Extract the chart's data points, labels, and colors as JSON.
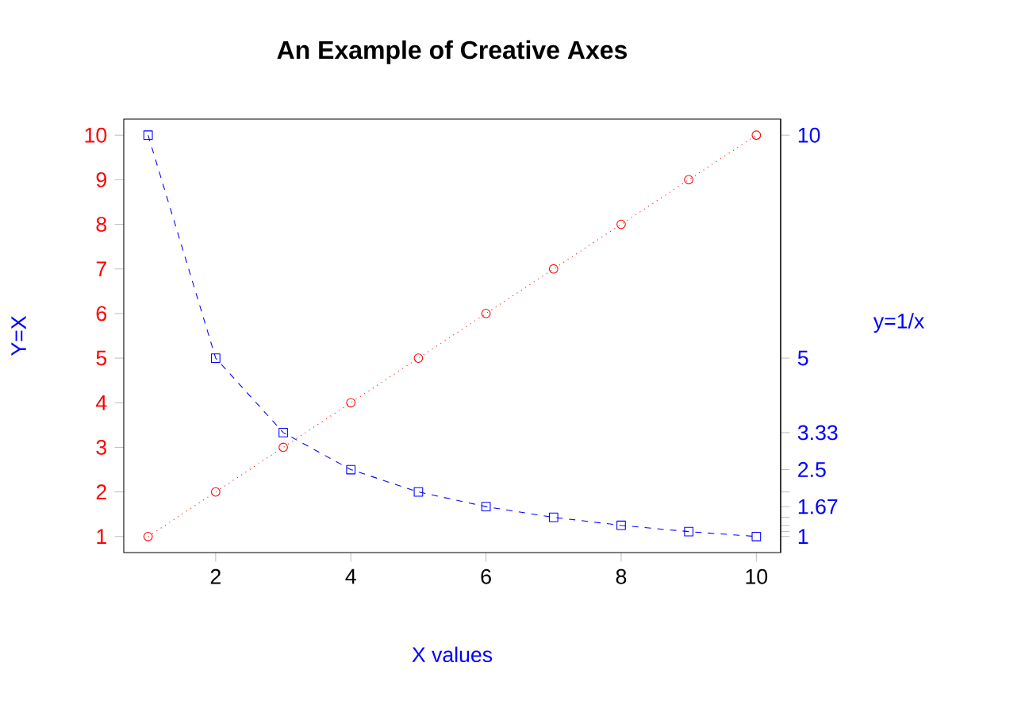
{
  "chart_data": {
    "type": "line",
    "title": "An Example of Creative Axes",
    "xlabel": "X values",
    "ylabel": "Y=X",
    "y2label": "y=1/x",
    "x": [
      1,
      2,
      3,
      4,
      5,
      6,
      7,
      8,
      9,
      10
    ],
    "series": [
      {
        "color": "#ff0000",
        "marker": "circle",
        "line_style": "dotted",
        "values": [
          1,
          2,
          3,
          4,
          5,
          6,
          7,
          8,
          9,
          10
        ]
      },
      {
        "color": "#0000ff",
        "marker": "square",
        "line_style": "dashed",
        "axis": "y2",
        "values": [
          10,
          5,
          3.33,
          2.5,
          2,
          1.67,
          1.43,
          1.25,
          1.11,
          1
        ]
      }
    ],
    "xlim": [
      0.64,
      10.36
    ],
    "xticks": [
      2,
      4,
      6,
      8,
      10
    ],
    "ylim": [
      0.64,
      10.36
    ],
    "yticks": [
      1,
      2,
      3,
      4,
      5,
      6,
      7,
      8,
      9,
      10
    ],
    "y2lim": [
      0.64,
      10.36
    ],
    "y2ticks": [
      10,
      5,
      3.33,
      2.5,
      {
        "value": 2,
        "label": null
      },
      1.67,
      {
        "value": 1.43,
        "label": null
      },
      {
        "value": 1.25,
        "label": null
      },
      {
        "value": 1.11,
        "label": null
      },
      1
    ],
    "tick_labels": true
  }
}
